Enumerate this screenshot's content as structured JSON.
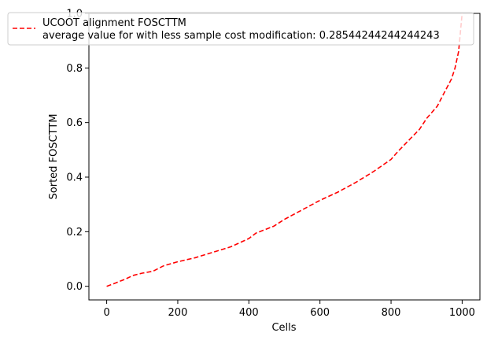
{
  "chart_data": {
    "type": "line",
    "title": "",
    "xlabel": "Cells",
    "ylabel": "Sorted FOSCTTM",
    "xlim": [
      -50,
      1050
    ],
    "ylim": [
      -0.05,
      1.0
    ],
    "x_ticks": [
      "0",
      "200",
      "400",
      "600",
      "800",
      "1000"
    ],
    "y_ticks": [
      "0.0",
      "0.2",
      "0.4",
      "0.6",
      "0.8",
      "1.0"
    ],
    "grid": false,
    "legend_position": "top",
    "series": [
      {
        "name": "UCOOT alignment FOSCTTM",
        "name_line2": "average value for with less sample cost modification: 0.28544244244244243",
        "color": "#ff0000",
        "style": "dashed",
        "x": [
          0,
          25,
          50,
          75,
          100,
          130,
          160,
          200,
          250,
          300,
          350,
          400,
          420,
          470,
          500,
          550,
          600,
          650,
          700,
          750,
          800,
          820,
          850,
          880,
          900,
          930,
          950,
          970,
          980,
          990,
          1000
        ],
        "y": [
          0.0,
          0.012,
          0.025,
          0.04,
          0.048,
          0.055,
          0.075,
          0.09,
          0.105,
          0.125,
          0.145,
          0.175,
          0.195,
          0.22,
          0.245,
          0.28,
          0.315,
          0.345,
          0.38,
          0.42,
          0.465,
          0.495,
          0.535,
          0.575,
          0.615,
          0.66,
          0.71,
          0.76,
          0.8,
          0.86,
          1.0
        ]
      }
    ]
  }
}
